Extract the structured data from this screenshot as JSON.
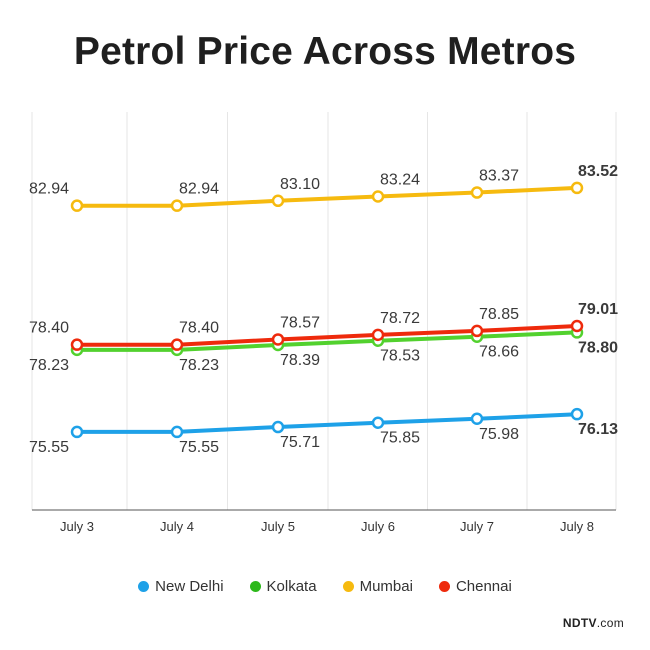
{
  "chart_data": {
    "type": "line",
    "title": "Petrol Price Across Metros",
    "categories": [
      "July 3",
      "July 4",
      "July 5",
      "July 6",
      "July 7",
      "July 8"
    ],
    "ylim": [
      73,
      86
    ],
    "series": [
      {
        "name": "New Delhi",
        "color": "#1ea1e8",
        "values": [
          75.55,
          75.55,
          75.71,
          75.85,
          75.98,
          76.13
        ],
        "labels": [
          "75.55",
          "75.55",
          "75.71",
          "75.85",
          "75.98",
          "76.13"
        ],
        "label_side": "below"
      },
      {
        "name": "Kolkata",
        "color": "#52d12e",
        "values": [
          78.23,
          78.23,
          78.39,
          78.53,
          78.66,
          78.8
        ],
        "labels": [
          "78.23",
          "78.23",
          "78.39",
          "78.53",
          "78.66",
          "78.80"
        ],
        "label_side": "below"
      },
      {
        "name": "Mumbai",
        "color": "#f6ba0f",
        "values": [
          82.94,
          82.94,
          83.1,
          83.24,
          83.37,
          83.52
        ],
        "labels": [
          "82.94",
          "82.94",
          "83.10",
          "83.24",
          "83.37",
          "83.52"
        ],
        "label_side": "above"
      },
      {
        "name": "Chennai",
        "color": "#ee2a0c",
        "values": [
          78.4,
          78.4,
          78.57,
          78.72,
          78.85,
          79.01
        ],
        "labels": [
          "78.40",
          "78.40",
          "78.57",
          "78.72",
          "78.85",
          "79.01"
        ],
        "label_side": "above"
      }
    ],
    "legend_position": "bottom-center",
    "grid": "vertical"
  },
  "legend": {
    "items": [
      {
        "name": "New Delhi",
        "color": "#1ea1e8"
      },
      {
        "name": "Kolkata",
        "color": "#2cb81a"
      },
      {
        "name": "Mumbai",
        "color": "#f6ba0f"
      },
      {
        "name": "Chennai",
        "color": "#ee2a0c"
      }
    ]
  },
  "footer": {
    "brand": "NDTV",
    "suffix": ".com"
  }
}
